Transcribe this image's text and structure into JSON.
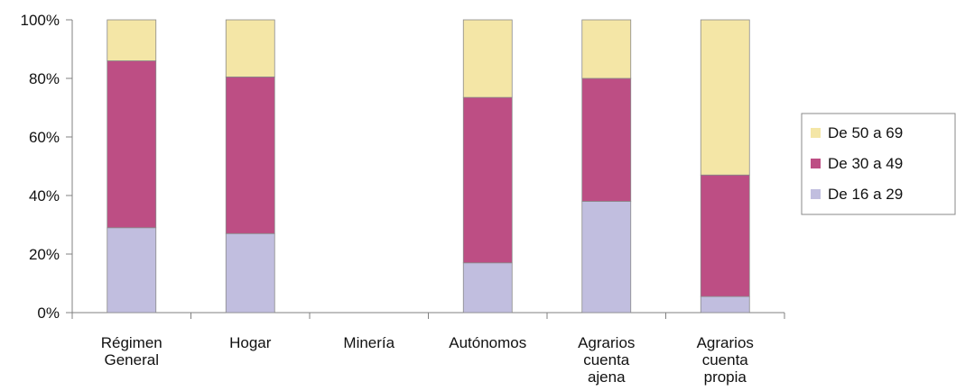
{
  "chart_data": {
    "type": "bar",
    "stacked": true,
    "percent": true,
    "title": "",
    "xlabel": "",
    "ylabel": "",
    "ylim": [
      0,
      100
    ],
    "yticks": [
      "0%",
      "20%",
      "40%",
      "60%",
      "80%",
      "100%"
    ],
    "grid": false,
    "legend_position": "right",
    "categories": [
      [
        "Régimen",
        "General"
      ],
      [
        "Hogar"
      ],
      [
        "Minería"
      ],
      [
        "Autónomos"
      ],
      [
        "Agrarios",
        "cuenta",
        "ajena"
      ],
      [
        "Agrarios",
        "cuenta",
        "propia"
      ]
    ],
    "series": [
      {
        "name": "De 16 a 29",
        "color": "#c1bedf",
        "values": [
          29,
          27,
          0,
          17,
          38,
          5.5
        ]
      },
      {
        "name": "De 30 a 49",
        "color": "#bd4e84",
        "values": [
          57,
          53.5,
          0,
          56.5,
          42,
          41.5
        ]
      },
      {
        "name": "De 50 a 69",
        "color": "#f4e6a6",
        "values": [
          14,
          19.5,
          0,
          26.5,
          20,
          53
        ]
      }
    ],
    "legend_order": [
      "De 50 a 69",
      "De 30 a 49",
      "De 16 a 29"
    ]
  }
}
